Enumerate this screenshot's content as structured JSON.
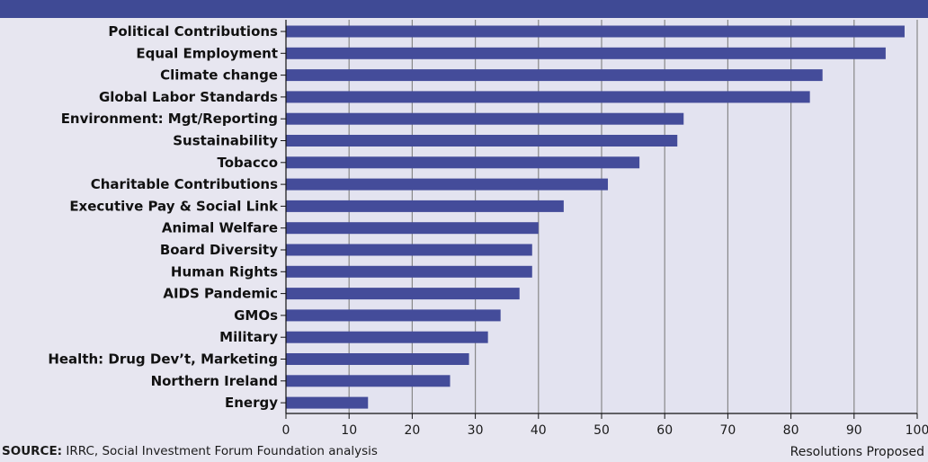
{
  "colors": {
    "background": "#e7e6f0",
    "top_band": "#3f4a95",
    "bar": "#444c9a",
    "plot_area": "#e3e3f0",
    "grid": "#888888"
  },
  "source": {
    "label": "SOURCE:",
    "text": " IRRC, Social Investment Forum Foundation analysis"
  },
  "chart_data": {
    "type": "bar",
    "orientation": "horizontal",
    "categories": [
      "Political Contributions",
      "Equal Employment",
      "Climate change",
      "Global Labor Standards ",
      "Environment: Mgt/Reporting",
      "Sustainability",
      "Tobacco",
      "Charitable Contributions",
      "Executive Pay & Social Link",
      "Animal Welfare",
      "Board Diversity ",
      "Human Rights",
      "AIDS Pandemic",
      "GMOs",
      "Military",
      "Health: Drug Dev’t, Marketing",
      "Northern Ireland",
      "Energy"
    ],
    "values": [
      98,
      95,
      85,
      83,
      63,
      62,
      56,
      51,
      44,
      40,
      39,
      39,
      37,
      34,
      32,
      29,
      26,
      13
    ],
    "xlabel": "Resolutions Proposed",
    "ylabel": "",
    "xlim": [
      0,
      100
    ],
    "xticks": [
      0,
      10,
      20,
      30,
      40,
      50,
      60,
      70,
      80,
      90,
      100
    ],
    "grid": "vertical"
  }
}
